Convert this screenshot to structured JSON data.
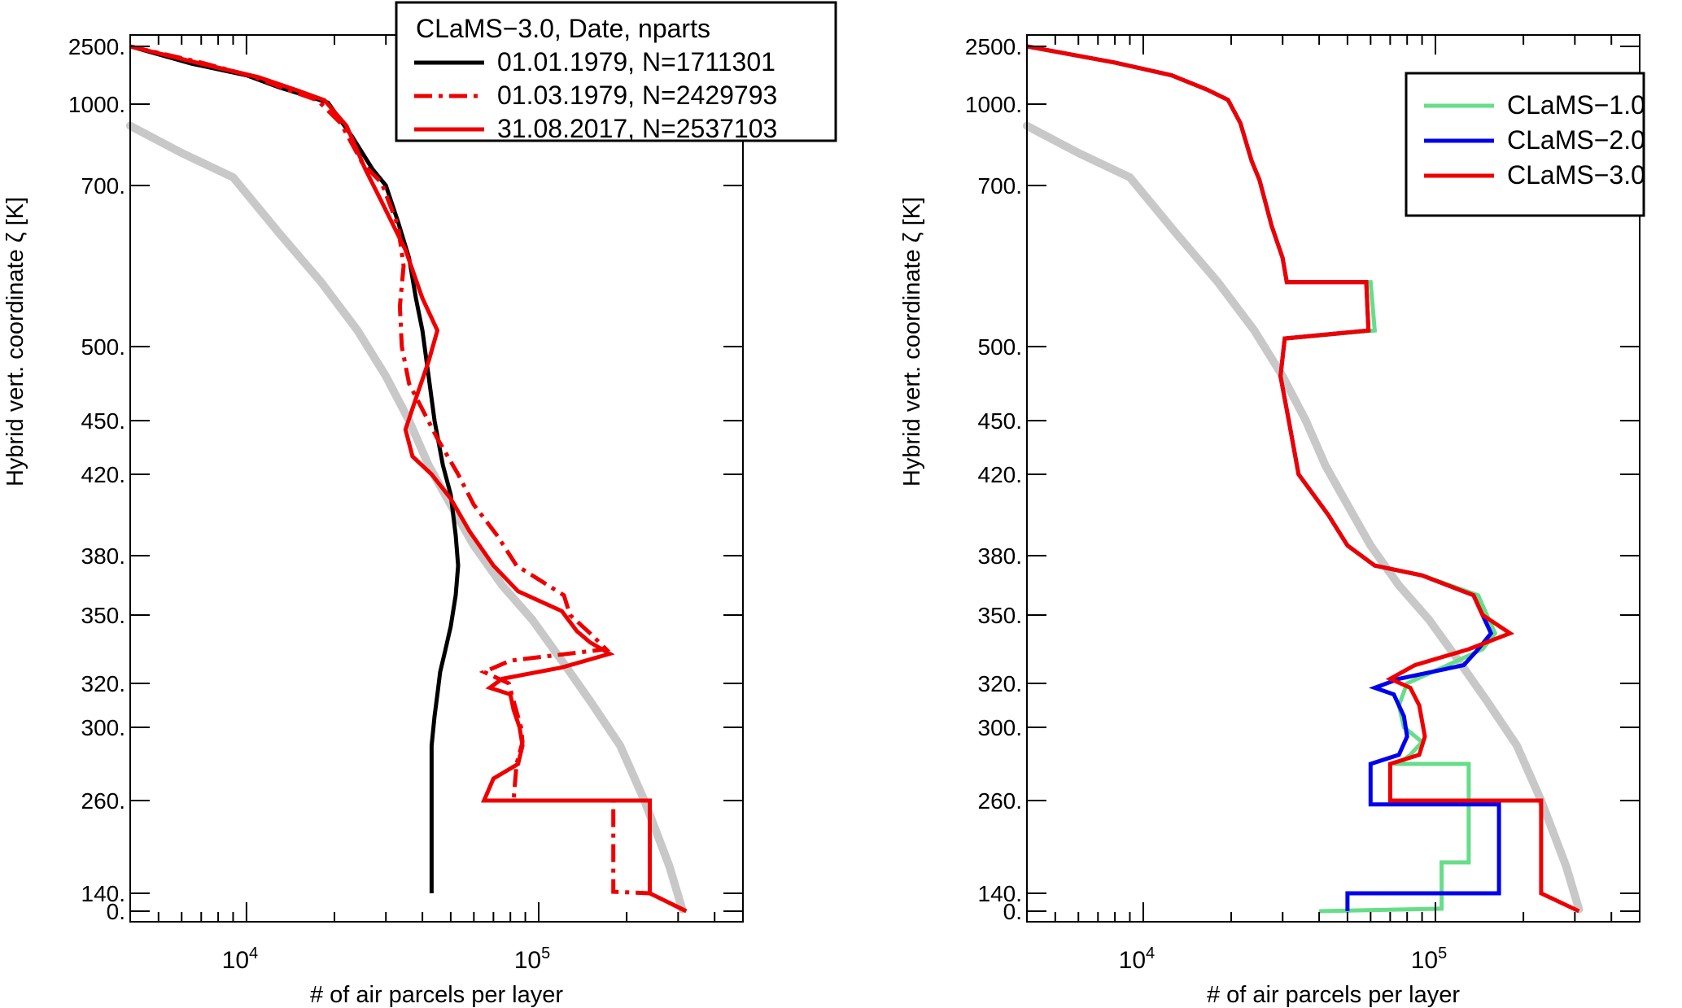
{
  "chart_data": [
    {
      "type": "line",
      "xlabel": "# of air parcels per layer",
      "ylabel": "Hybrid vert. coordinate ζ [K]",
      "xscale": "log",
      "xlim": [
        4000,
        500000
      ],
      "xticks": [
        {
          "value": 10000,
          "base": "10",
          "exp": "4"
        },
        {
          "value": 100000,
          "base": "10",
          "exp": "5"
        }
      ],
      "yticks": [
        {
          "value": 0,
          "label": "0."
        },
        {
          "value": 140,
          "label": "140."
        },
        {
          "value": 260,
          "label": "260."
        },
        {
          "value": 300,
          "label": "300."
        },
        {
          "value": 320,
          "label": "320."
        },
        {
          "value": 350,
          "label": "350."
        },
        {
          "value": 380,
          "label": "380."
        },
        {
          "value": 420,
          "label": "420."
        },
        {
          "value": 450,
          "label": "450."
        },
        {
          "value": 500,
          "label": "500."
        },
        {
          "value": 700,
          "label": "700."
        },
        {
          "value": 1000,
          "label": "1000."
        },
        {
          "value": 2500,
          "label": "2500."
        }
      ],
      "legend": {
        "title": "CLaMS−3.0, Date, nparts",
        "position": "top-right",
        "entries": [
          "01.01.1979, N=1711301",
          "01.03.1979, N=2429793",
          "31.08.2017, N=2537103"
        ]
      },
      "reference_curve": {
        "color": "#c8c8c8",
        "x": [
          4000,
          6000,
          9000,
          13000,
          18000,
          24000,
          30000,
          36000,
          42000,
          50000,
          60000,
          75000,
          95000,
          120000,
          150000,
          190000,
          230000,
          280000,
          310000
        ],
        "y": [
          920,
          820,
          730,
          640,
          580,
          520,
          480,
          450,
          425,
          405,
          385,
          365,
          348,
          330,
          312,
          290,
          260,
          175,
          15
        ]
      },
      "series": [
        {
          "name": "01.01.1979, N=1711301",
          "color": "#000000",
          "style": "solid",
          "x": [
            4000,
            6500,
            10000,
            13000,
            16000,
            19000,
            23000,
            27000,
            30000,
            33000,
            36000,
            38000,
            40000,
            42000,
            44000,
            47000,
            50000,
            52000,
            53000,
            52000,
            50000,
            48000,
            46000,
            45000,
            44000,
            43000,
            43000
          ],
          "y": [
            2500,
            2050,
            1750,
            1430,
            1220,
            1040,
            880,
            760,
            700,
            655,
            610,
            560,
            520,
            480,
            450,
            425,
            410,
            390,
            375,
            360,
            345,
            335,
            325,
            315,
            305,
            290,
            140
          ]
        },
        {
          "name": "01.03.1979, N=2429793",
          "color": "#ee0000",
          "style": "dashdot",
          "x": [
            4000,
            7000,
            10500,
            14000,
            17500,
            21000,
            25000,
            29000,
            33000,
            34500,
            33500,
            34000,
            36000,
            45000,
            53000,
            60000,
            72000,
            84000,
            122000,
            128000,
            150000,
            170000,
            80000,
            65000,
            79000,
            82000,
            87000,
            88000,
            84000,
            82000,
            180000,
            180000,
            240000,
            320000
          ],
          "y": [
            2500,
            2080,
            1720,
            1360,
            1100,
            930,
            780,
            710,
            650,
            600,
            550,
            500,
            475,
            440,
            420,
            405,
            390,
            375,
            360,
            350,
            342,
            335,
            330,
            325,
            320,
            312,
            300,
            292,
            280,
            260,
            260,
            142,
            140,
            0
          ]
        },
        {
          "name": "31.08.2017, N=2537103",
          "color": "#ee0000",
          "style": "solid",
          "x": [
            4000,
            7000,
            11000,
            15000,
            18500,
            22000,
            25500,
            29000,
            35000,
            40000,
            45000,
            42000,
            38000,
            35000,
            37000,
            43000,
            50000,
            58000,
            70000,
            85000,
            120000,
            135000,
            150000,
            175000,
            120000,
            75000,
            68000,
            80000,
            82000,
            86000,
            88000,
            85000,
            70000,
            65000,
            240000,
            240000,
            320000
          ],
          "y": [
            2500,
            2050,
            1700,
            1350,
            1100,
            920,
            760,
            680,
            620,
            560,
            520,
            490,
            465,
            445,
            430,
            420,
            408,
            392,
            375,
            362,
            352,
            343,
            338,
            333,
            327,
            322,
            318,
            315,
            308,
            300,
            290,
            280,
            272,
            260,
            260,
            140,
            0
          ]
        }
      ]
    },
    {
      "type": "line",
      "xlabel": "# of air parcels per layer",
      "ylabel": "Hybrid vert. coordinate ζ [K]",
      "xscale": "log",
      "xlim": [
        4000,
        500000
      ],
      "xticks": [
        {
          "value": 10000,
          "base": "10",
          "exp": "4"
        },
        {
          "value": 100000,
          "base": "10",
          "exp": "5"
        }
      ],
      "yticks": [
        {
          "value": 0,
          "label": "0."
        },
        {
          "value": 140,
          "label": "140."
        },
        {
          "value": 260,
          "label": "260."
        },
        {
          "value": 300,
          "label": "300."
        },
        {
          "value": 320,
          "label": "320."
        },
        {
          "value": 350,
          "label": "350."
        },
        {
          "value": 380,
          "label": "380."
        },
        {
          "value": 420,
          "label": "420."
        },
        {
          "value": 450,
          "label": "450."
        },
        {
          "value": 500,
          "label": "500."
        },
        {
          "value": 700,
          "label": "700."
        },
        {
          "value": 1000,
          "label": "1000."
        },
        {
          "value": 2500,
          "label": "2500."
        }
      ],
      "legend": {
        "title": "",
        "position": "top-right",
        "entries": [
          "CLaMS−1.0",
          "CLaMS−2.0",
          "CLaMS−3.0"
        ]
      },
      "reference_curve": {
        "color": "#c8c8c8",
        "x": [
          4000,
          6000,
          9000,
          13000,
          18000,
          24000,
          30000,
          36000,
          42000,
          50000,
          60000,
          75000,
          95000,
          120000,
          150000,
          190000,
          230000,
          280000,
          310000
        ],
        "y": [
          920,
          820,
          730,
          640,
          580,
          520,
          480,
          450,
          425,
          405,
          385,
          365,
          348,
          330,
          312,
          290,
          260,
          175,
          15
        ]
      },
      "series": [
        {
          "name": "CLaMS−1.0",
          "color": "#66dd88",
          "style": "solid",
          "x": [
            4000,
            8000,
            12500,
            16500,
            19500,
            21500,
            23500,
            25000,
            27500,
            30000,
            31000,
            60000,
            62000,
            30500,
            29500,
            31500,
            34000,
            43000,
            50000,
            62000,
            90000,
            140000,
            150000,
            160000,
            145000,
            110000,
            80000,
            75000,
            78000,
            90000,
            82000,
            75000,
            130000,
            130000,
            105000,
            105000,
            40000
          ],
          "y": [
            2500,
            2080,
            1750,
            1380,
            1110,
            930,
            790,
            720,
            650,
            610,
            580,
            580,
            520,
            510,
            480,
            450,
            420,
            400,
            385,
            375,
            370,
            360,
            350,
            342,
            335,
            328,
            320,
            310,
            300,
            292,
            285,
            280,
            280,
            180,
            180,
            20,
            0
          ]
        },
        {
          "name": "CLaMS−2.0",
          "color": "#0000ee",
          "style": "solid",
          "x": [
            4000,
            8000,
            12500,
            16500,
            19500,
            21500,
            23500,
            25000,
            27500,
            30000,
            31000,
            58000,
            59000,
            30500,
            29500,
            31500,
            34000,
            43000,
            50000,
            62000,
            90000,
            135000,
            145000,
            155000,
            140000,
            125000,
            75000,
            62000,
            72000,
            78000,
            80000,
            75000,
            60000,
            60000,
            165000,
            165000,
            50000,
            50000
          ],
          "y": [
            2500,
            2080,
            1750,
            1380,
            1110,
            930,
            790,
            720,
            650,
            610,
            580,
            580,
            520,
            510,
            480,
            450,
            420,
            400,
            385,
            375,
            370,
            360,
            350,
            342,
            335,
            328,
            322,
            318,
            315,
            305,
            295,
            285,
            280,
            255,
            255,
            140,
            140,
            0
          ]
        },
        {
          "name": "CLaMS−3.0",
          "color": "#ee0000",
          "style": "solid",
          "x": [
            4000,
            8000,
            12500,
            16500,
            19500,
            21500,
            23500,
            25000,
            27500,
            30000,
            31000,
            58000,
            59000,
            30500,
            29500,
            31500,
            34000,
            43000,
            50000,
            62000,
            90000,
            135000,
            145000,
            180000,
            130000,
            85000,
            70000,
            82000,
            88000,
            92000,
            88000,
            70000,
            70000,
            230000,
            230000,
            310000
          ],
          "y": [
            2500,
            2080,
            1750,
            1380,
            1110,
            930,
            790,
            720,
            650,
            610,
            580,
            580,
            520,
            510,
            480,
            450,
            420,
            400,
            385,
            375,
            370,
            360,
            350,
            342,
            335,
            328,
            322,
            318,
            310,
            295,
            285,
            280,
            260,
            260,
            140,
            0
          ]
        }
      ]
    }
  ]
}
